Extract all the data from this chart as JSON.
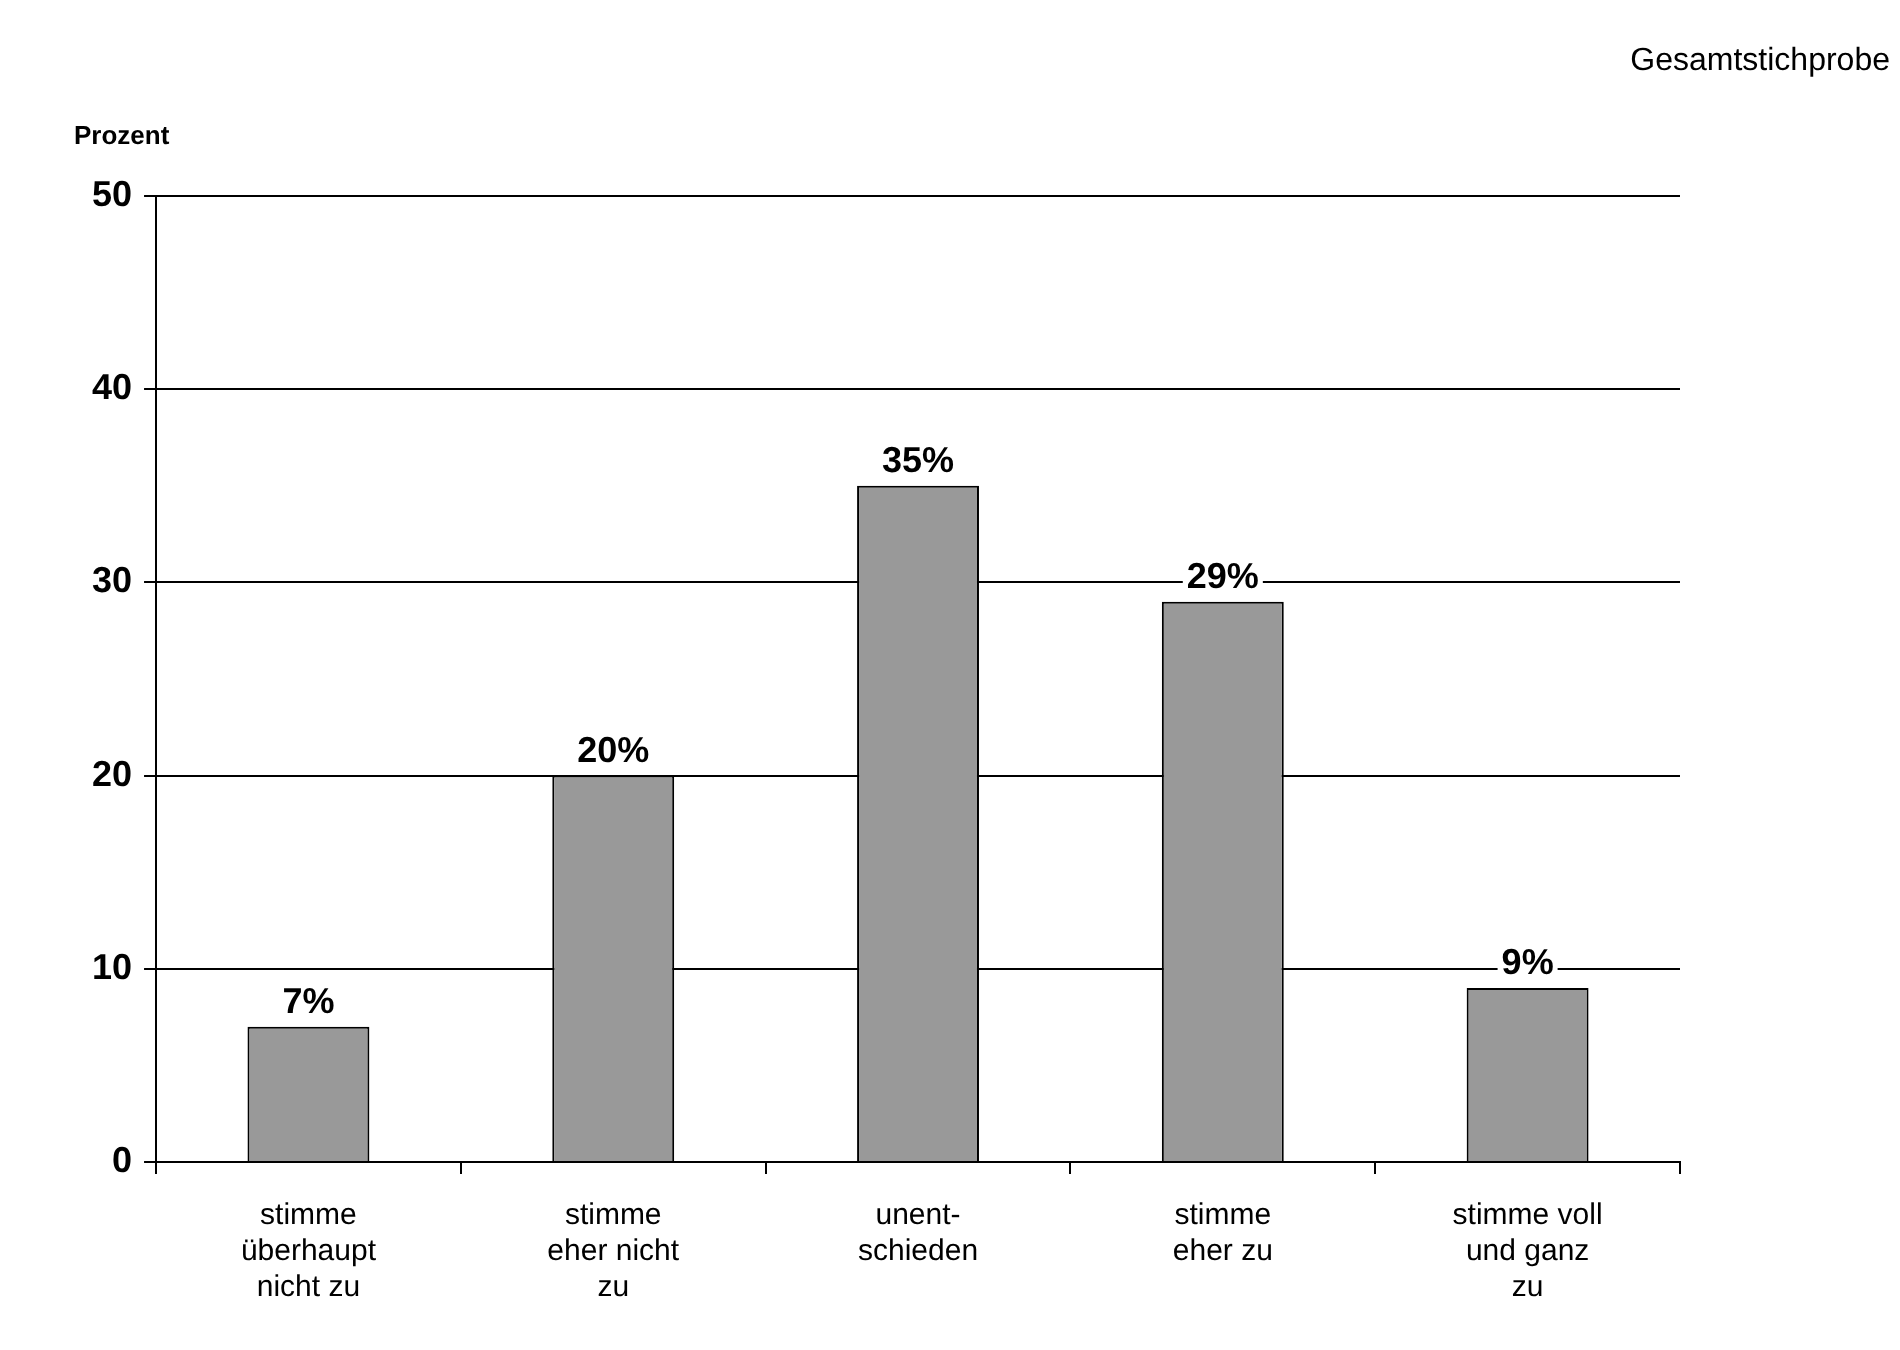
{
  "chart_data": {
    "type": "bar",
    "title": "Gesamtstichprobe",
    "ylabel": "Prozent",
    "categories": [
      "stimme\nüberhaupt\nnicht zu",
      "stimme\neher nicht\nzu",
      "unent-\nschieden",
      "stimme\neher zu",
      "stimme voll\nund ganz\nzu"
    ],
    "values": [
      7,
      20,
      35,
      29,
      9
    ],
    "value_labels": [
      "7%",
      "20%",
      "35%",
      "29%",
      "9%"
    ],
    "color": "#999999",
    "ylim": [
      0,
      50
    ],
    "yticks": [
      0,
      10,
      20,
      30,
      40,
      50
    ],
    "grid": "y",
    "legend": false
  }
}
